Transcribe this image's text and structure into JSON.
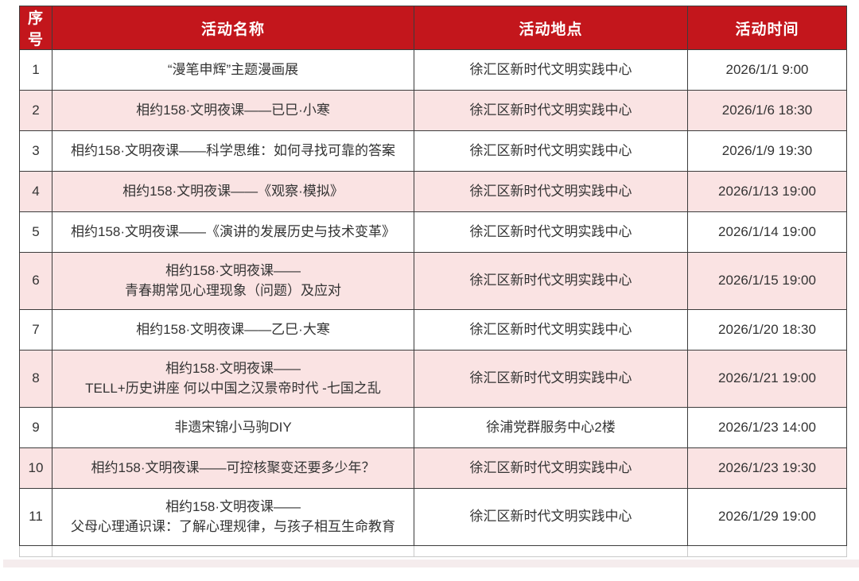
{
  "colors": {
    "header_bg": "#c3161c",
    "header_text": "#ffffff",
    "row_pink": "#fae3e3",
    "row_white": "#ffffff",
    "border_dark": "#3c3c3c",
    "border_light": "#c9c9c9",
    "body_text": "#333333",
    "bottom_band": "#f5eced"
  },
  "table": {
    "columns": [
      {
        "label": "序号"
      },
      {
        "label": "活动名称"
      },
      {
        "label": "活动地点"
      },
      {
        "label": "活动时间"
      }
    ],
    "rows": [
      {
        "index": "1",
        "name_lines": [
          "“漫笔申辉”主题漫画展"
        ],
        "location": "徐汇区新时代文明实践中心",
        "time": "2026/1/1 9:00"
      },
      {
        "index": "2",
        "name_lines": [
          "相约158·文明夜课——已巳·小寒"
        ],
        "location": "徐汇区新时代文明实践中心",
        "time": "2026/1/6 18:30"
      },
      {
        "index": "3",
        "name_lines": [
          "相约158·文明夜课——科学思维：如何寻找可靠的答案"
        ],
        "location": "徐汇区新时代文明实践中心",
        "time": "2026/1/9 19:30"
      },
      {
        "index": "4",
        "name_lines": [
          "相约158·文明夜课——《观察·模拟》"
        ],
        "location": "徐汇区新时代文明实践中心",
        "time": "2026/1/13 19:00"
      },
      {
        "index": "5",
        "name_lines": [
          "相约158·文明夜课——《演讲的发展历史与技术变革》"
        ],
        "location": "徐汇区新时代文明实践中心",
        "time": "2026/1/14 19:00"
      },
      {
        "index": "6",
        "name_lines": [
          "相约158·文明夜课——",
          "青春期常见心理现象（问题）及应对"
        ],
        "location": "徐汇区新时代文明实践中心",
        "time": "2026/1/15 19:00"
      },
      {
        "index": "7",
        "name_lines": [
          "相约158·文明夜课——乙巳·大寒"
        ],
        "location": "徐汇区新时代文明实践中心",
        "time": "2026/1/20 18:30"
      },
      {
        "index": "8",
        "name_lines": [
          "相约158·文明夜课——",
          "TELL+历史讲座 何以中国之汉景帝时代 -七国之乱"
        ],
        "location": "徐汇区新时代文明实践中心",
        "time": "2026/1/21 19:00"
      },
      {
        "index": "9",
        "name_lines": [
          "非遗宋锦小马驹DIY"
        ],
        "location": "徐浦党群服务中心2楼",
        "time": "2026/1/23 14:00"
      },
      {
        "index": "10",
        "name_lines": [
          "相约158·文明夜课——可控核聚变还要多少年？"
        ],
        "location": "徐汇区新时代文明实践中心",
        "time": "2026/1/23 19:30"
      },
      {
        "index": "11",
        "name_lines": [
          "相约158·文明夜课——",
          "父母心理通识课：了解心理规律，与孩子相互生命教育"
        ],
        "location": "徐汇区新时代文明实践中心",
        "time": "2026/1/29 19:00"
      }
    ]
  }
}
